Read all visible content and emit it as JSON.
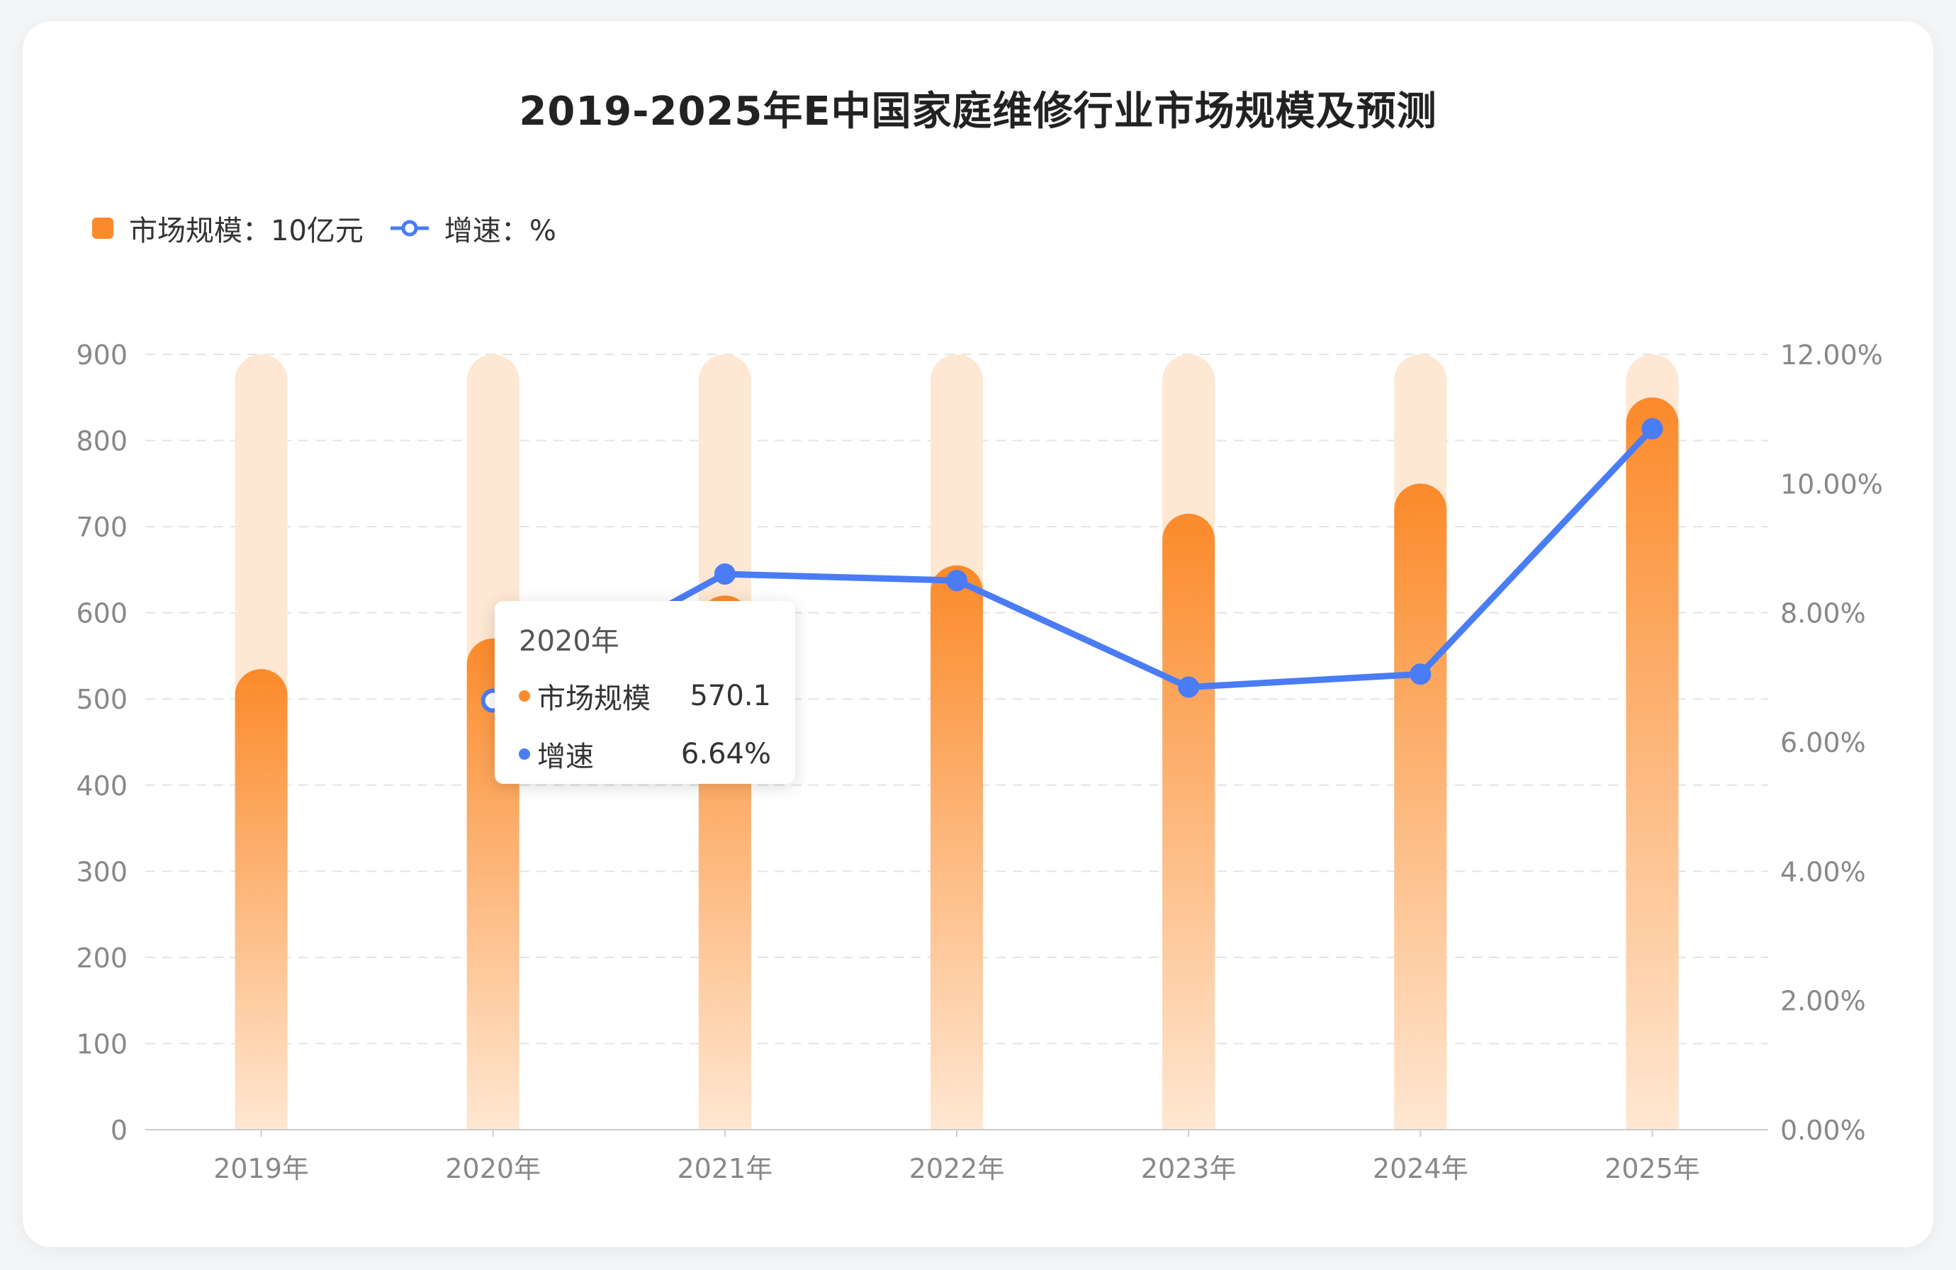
{
  "title": "2019-2025年E中国家庭维修行业市场规模及预测",
  "legend": {
    "bar_label": "市场规模：10亿元",
    "line_label": "增速：%"
  },
  "colors": {
    "bar": "#fb8a2a",
    "bar_track": "#fee7d3",
    "line": "#4a7cf5",
    "grid": "#e4e4e4",
    "axis_text": "#888888"
  },
  "tooltip": {
    "title": "2020年",
    "rows": [
      {
        "name": "市场规模",
        "value": "570.1",
        "color": "#fb8a2a"
      },
      {
        "name": "增速",
        "value": "6.64%",
        "color": "#4a7cf5"
      }
    ]
  },
  "chart_data": {
    "type": "bar",
    "title": "2019-2025年E中国家庭维修行业市场规模及预测",
    "categories": [
      "2019年",
      "2020年",
      "2021年",
      "2022年",
      "2023年",
      "2024年",
      "2025年"
    ],
    "series": [
      {
        "name": "市场规模",
        "type": "bar",
        "axis": "left",
        "values": [
          534.6,
          570.1,
          620,
          655,
          715,
          750,
          850
        ]
      },
      {
        "name": "增速",
        "type": "line",
        "axis": "right",
        "values": [
          null,
          6.64,
          8.6,
          8.5,
          6.85,
          7.05,
          10.85
        ]
      }
    ],
    "ylim_left": [
      0,
      900
    ],
    "yticks_left": [
      "0",
      "100",
      "200",
      "300",
      "400",
      "500",
      "600",
      "700",
      "800",
      "900"
    ],
    "ylim_right": [
      0,
      12
    ],
    "yticks_right": [
      "0.00%",
      "2.00%",
      "4.00%",
      "6.00%",
      "8.00%",
      "10.00%",
      "12.00%"
    ],
    "grid": true,
    "legend": "top-left"
  }
}
